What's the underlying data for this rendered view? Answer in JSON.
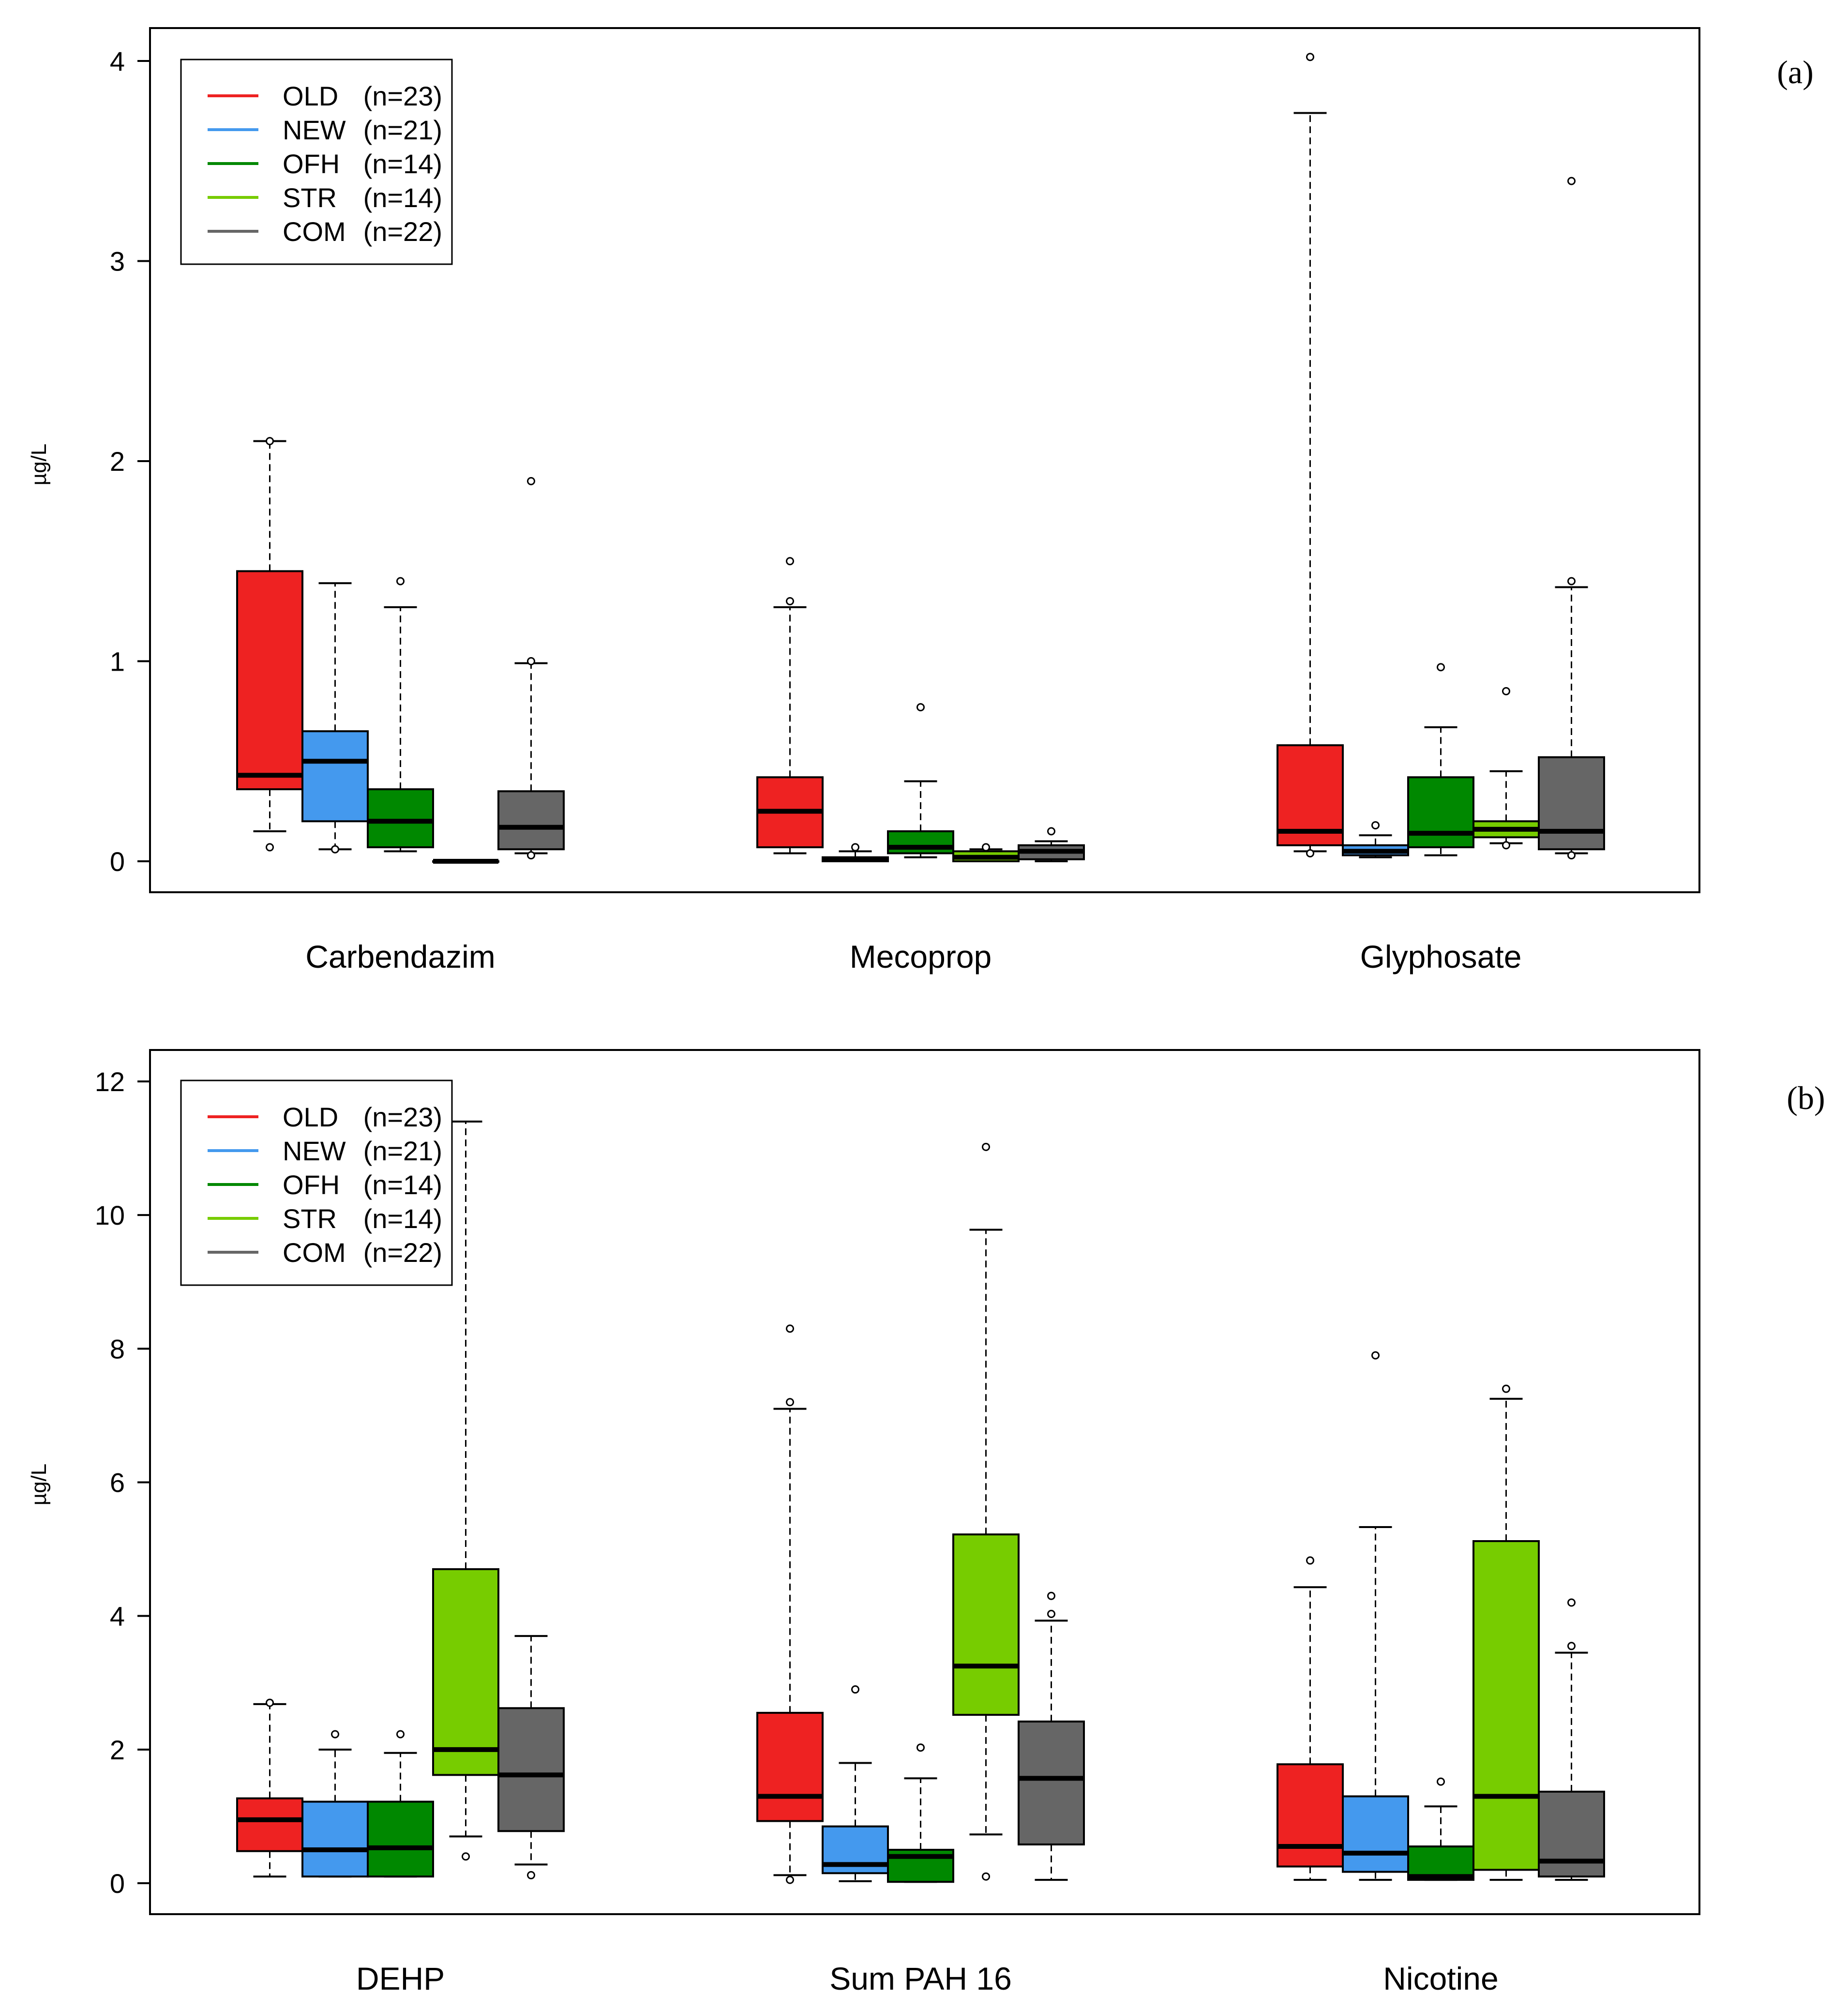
{
  "colors": {
    "OLD": "#ee2222",
    "NEW": "#4499ee",
    "OFH": "#008800",
    "STR": "#77cc00",
    "COM": "#666666"
  },
  "chart_data": [
    {
      "type": "boxplot",
      "panel_label": "(a)",
      "ylabel": "µg/L",
      "ylim": [
        0,
        4
      ],
      "yticks": [
        0,
        1,
        2,
        3,
        4
      ],
      "ytick_labels": [
        "0",
        "1",
        "2",
        "3",
        "4"
      ],
      "legend": {
        "position": "top-left",
        "entries": [
          {
            "group": "OLD",
            "label": "OLD",
            "n": "(n=23)"
          },
          {
            "group": "NEW",
            "label": "NEW",
            "n": "(n=21)"
          },
          {
            "group": "OFH",
            "label": "OFH",
            "n": "(n=14)"
          },
          {
            "group": "STR",
            "label": "STR",
            "n": "(n=14)"
          },
          {
            "group": "COM",
            "label": "COM",
            "n": "(n=22)"
          }
        ]
      },
      "categories": [
        {
          "label": "Carbendazim",
          "boxes": [
            {
              "group": "OLD",
              "wlo": 0.15,
              "q1": 0.36,
              "med": 0.43,
              "q3": 1.45,
              "whi": 2.1,
              "out": [
                0.07,
                2.1
              ]
            },
            {
              "group": "NEW",
              "wlo": 0.06,
              "q1": 0.2,
              "med": 0.5,
              "q3": 0.65,
              "whi": 1.39,
              "out": [
                0.06
              ]
            },
            {
              "group": "OFH",
              "wlo": 0.05,
              "q1": 0.07,
              "med": 0.2,
              "q3": 0.36,
              "whi": 1.27,
              "out": [
                1.4
              ]
            },
            {
              "group": "STR",
              "wlo": 0.0,
              "q1": 0.0,
              "med": 0.0,
              "q3": 0.0,
              "whi": 0.0,
              "out": []
            },
            {
              "group": "COM",
              "wlo": 0.04,
              "q1": 0.06,
              "med": 0.17,
              "q3": 0.35,
              "whi": 0.99,
              "out": [
                1.0,
                1.9,
                0.03
              ]
            }
          ]
        },
        {
          "label": "Mecoprop",
          "boxes": [
            {
              "group": "OLD",
              "wlo": 0.04,
              "q1": 0.07,
              "med": 0.25,
              "q3": 0.42,
              "whi": 1.27,
              "out": [
                1.3,
                1.5
              ]
            },
            {
              "group": "NEW",
              "wlo": 0.0,
              "q1": 0.0,
              "med": 0.01,
              "q3": 0.02,
              "whi": 0.05,
              "out": [
                0.07
              ]
            },
            {
              "group": "OFH",
              "wlo": 0.02,
              "q1": 0.04,
              "med": 0.07,
              "q3": 0.15,
              "whi": 0.4,
              "out": [
                0.77
              ]
            },
            {
              "group": "STR",
              "wlo": 0.0,
              "q1": 0.0,
              "med": 0.02,
              "q3": 0.05,
              "whi": 0.06,
              "out": [
                0.07
              ]
            },
            {
              "group": "COM",
              "wlo": 0.0,
              "q1": 0.01,
              "med": 0.05,
              "q3": 0.08,
              "whi": 0.1,
              "out": [
                0.15
              ]
            }
          ]
        },
        {
          "label": "Glyphosate",
          "boxes": [
            {
              "group": "OLD",
              "wlo": 0.05,
              "q1": 0.08,
              "med": 0.15,
              "q3": 0.58,
              "whi": 3.74,
              "out": [
                4.02,
                0.04
              ]
            },
            {
              "group": "NEW",
              "wlo": 0.02,
              "q1": 0.03,
              "med": 0.05,
              "q3": 0.08,
              "whi": 0.13,
              "out": [
                0.18
              ]
            },
            {
              "group": "OFH",
              "wlo": 0.03,
              "q1": 0.07,
              "med": 0.14,
              "q3": 0.42,
              "whi": 0.67,
              "out": [
                0.97
              ]
            },
            {
              "group": "STR",
              "wlo": 0.09,
              "q1": 0.12,
              "med": 0.16,
              "q3": 0.2,
              "whi": 0.45,
              "out": [
                0.85,
                0.08
              ]
            },
            {
              "group": "COM",
              "wlo": 0.04,
              "q1": 0.06,
              "med": 0.15,
              "q3": 0.52,
              "whi": 1.37,
              "out": [
                1.4,
                3.4,
                0.03
              ]
            }
          ]
        }
      ]
    },
    {
      "type": "boxplot",
      "panel_label": "(b)",
      "ylabel": "µg/L",
      "ylim": [
        0,
        12
      ],
      "yticks": [
        0,
        2,
        4,
        6,
        8,
        10,
        12
      ],
      "ytick_labels": [
        "0",
        "2",
        "4",
        "6",
        "8",
        "10",
        "12"
      ],
      "legend": {
        "position": "top-left",
        "entries": [
          {
            "group": "OLD",
            "label": "OLD",
            "n": "(n=23)"
          },
          {
            "group": "NEW",
            "label": "NEW",
            "n": "(n=21)"
          },
          {
            "group": "OFH",
            "label": "OFH",
            "n": "(n=14)"
          },
          {
            "group": "STR",
            "label": "STR",
            "n": "(n=14)"
          },
          {
            "group": "COM",
            "label": "COM",
            "n": "(n=22)"
          }
        ]
      },
      "categories": [
        {
          "label": "DEHP",
          "boxes": [
            {
              "group": "OLD",
              "wlo": 0.1,
              "q1": 0.48,
              "med": 0.95,
              "q3": 1.27,
              "whi": 2.68,
              "out": [
                2.7
              ]
            },
            {
              "group": "NEW",
              "wlo": 0.1,
              "q1": 0.1,
              "med": 0.5,
              "q3": 1.22,
              "whi": 2.0,
              "out": [
                2.23
              ]
            },
            {
              "group": "OFH",
              "wlo": 0.1,
              "q1": 0.1,
              "med": 0.53,
              "q3": 1.22,
              "whi": 1.95,
              "out": [
                2.23
              ]
            },
            {
              "group": "STR",
              "wlo": 0.7,
              "q1": 1.62,
              "med": 2.0,
              "q3": 4.7,
              "whi": 11.4,
              "out": [
                0.4
              ]
            },
            {
              "group": "COM",
              "wlo": 0.28,
              "q1": 0.78,
              "med": 1.62,
              "q3": 2.62,
              "whi": 3.7,
              "out": [
                0.12
              ]
            }
          ]
        },
        {
          "label": "Sum PAH 16",
          "boxes": [
            {
              "group": "OLD",
              "wlo": 0.12,
              "q1": 0.93,
              "med": 1.3,
              "q3": 2.55,
              "whi": 7.1,
              "out": [
                8.3,
                7.2,
                0.05
              ]
            },
            {
              "group": "NEW",
              "wlo": 0.03,
              "q1": 0.15,
              "med": 0.28,
              "q3": 0.85,
              "whi": 1.8,
              "out": [
                2.9
              ]
            },
            {
              "group": "OFH",
              "wlo": 0.02,
              "q1": 0.02,
              "med": 0.4,
              "q3": 0.5,
              "whi": 1.57,
              "out": [
                2.03
              ]
            },
            {
              "group": "STR",
              "wlo": 0.73,
              "q1": 2.52,
              "med": 3.25,
              "q3": 5.22,
              "whi": 9.78,
              "out": [
                11.02,
                0.1
              ]
            },
            {
              "group": "COM",
              "wlo": 0.05,
              "q1": 0.58,
              "med": 1.57,
              "q3": 2.42,
              "whi": 3.93,
              "out": [
                4.3,
                4.03
              ]
            }
          ]
        },
        {
          "label": "Nicotine",
          "boxes": [
            {
              "group": "OLD",
              "wlo": 0.05,
              "q1": 0.25,
              "med": 0.55,
              "q3": 1.78,
              "whi": 4.43,
              "out": [
                4.83
              ]
            },
            {
              "group": "NEW",
              "wlo": 0.05,
              "q1": 0.17,
              "med": 0.45,
              "q3": 1.3,
              "whi": 5.33,
              "out": [
                7.9
              ]
            },
            {
              "group": "OFH",
              "wlo": 0.05,
              "q1": 0.05,
              "med": 0.1,
              "q3": 0.55,
              "whi": 1.15,
              "out": [
                1.52
              ]
            },
            {
              "group": "STR",
              "wlo": 0.05,
              "q1": 0.2,
              "med": 1.3,
              "q3": 5.12,
              "whi": 7.25,
              "out": [
                7.4
              ]
            },
            {
              "group": "COM",
              "wlo": 0.05,
              "q1": 0.1,
              "med": 0.33,
              "q3": 1.37,
              "whi": 3.45,
              "out": [
                4.2,
                3.55
              ]
            }
          ]
        }
      ]
    }
  ]
}
